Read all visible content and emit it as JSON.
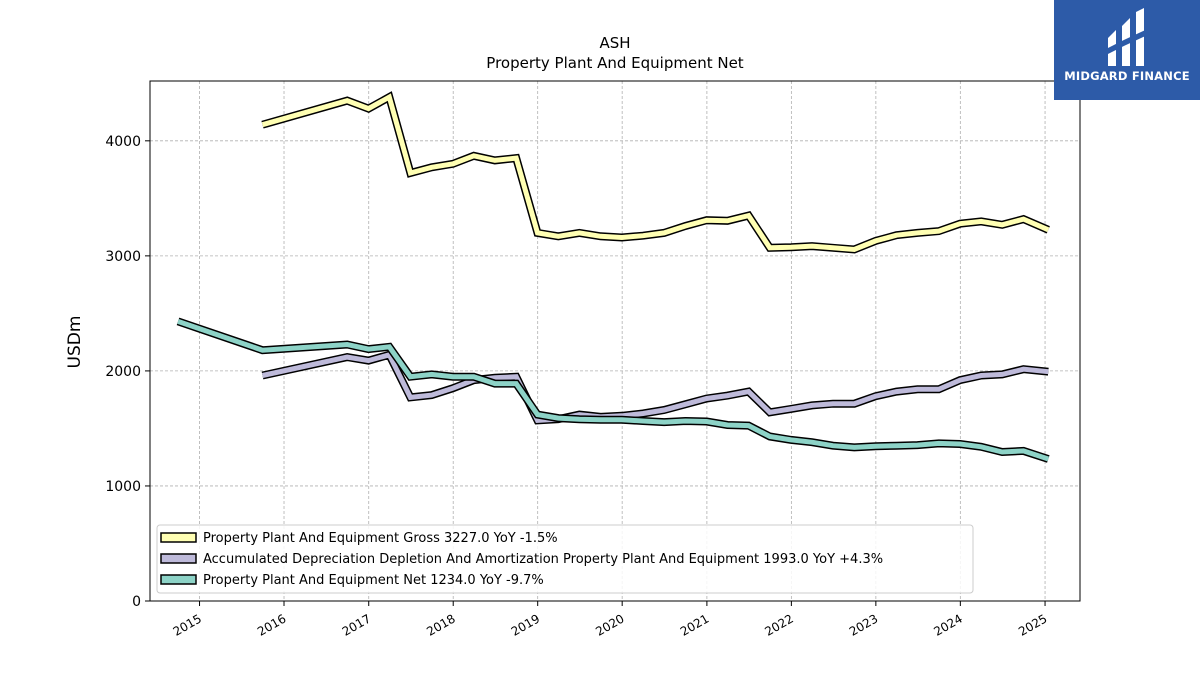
{
  "chart_data": {
    "type": "line",
    "title": "ASH",
    "subtitle": "Property Plant And Equipment Net",
    "ylabel": "USDm",
    "xlabel": "",
    "ylim": [
      0,
      4520
    ],
    "xlim": [
      "2014-06-01",
      "2025-06-01"
    ],
    "yticks": [
      0,
      1000,
      2000,
      3000,
      4000
    ],
    "xticks": [
      "2015",
      "2016",
      "2017",
      "2018",
      "2019",
      "2020",
      "2021",
      "2022",
      "2023",
      "2024",
      "2025"
    ],
    "grid": true,
    "legend_position": "lower-left",
    "series": [
      {
        "name": "Property Plant And Equipment Gross",
        "legend": "Property Plant And Equipment Gross  3227.0 YoY -1.5%",
        "color": "#ffffb3",
        "points": [
          [
            "2015-09-30",
            4140
          ],
          [
            "2016-09-30",
            4350
          ],
          [
            "2016-12-31",
            4280
          ],
          [
            "2017-03-31",
            4380
          ],
          [
            "2017-06-30",
            3720
          ],
          [
            "2017-09-30",
            3770
          ],
          [
            "2017-12-31",
            3800
          ],
          [
            "2018-03-31",
            3870
          ],
          [
            "2018-06-30",
            3830
          ],
          [
            "2018-09-30",
            3850
          ],
          [
            "2018-12-31",
            3200
          ],
          [
            "2019-03-31",
            3170
          ],
          [
            "2019-06-30",
            3200
          ],
          [
            "2019-09-30",
            3170
          ],
          [
            "2019-12-31",
            3160
          ],
          [
            "2020-03-31",
            3175
          ],
          [
            "2020-06-30",
            3200
          ],
          [
            "2020-09-30",
            3260
          ],
          [
            "2020-12-31",
            3310
          ],
          [
            "2021-03-31",
            3305
          ],
          [
            "2021-06-30",
            3350
          ],
          [
            "2021-09-30",
            3070
          ],
          [
            "2021-12-31",
            3075
          ],
          [
            "2022-03-31",
            3085
          ],
          [
            "2022-06-30",
            3070
          ],
          [
            "2022-09-30",
            3055
          ],
          [
            "2022-12-31",
            3130
          ],
          [
            "2023-03-31",
            3180
          ],
          [
            "2023-06-30",
            3200
          ],
          [
            "2023-09-30",
            3215
          ],
          [
            "2023-12-31",
            3280
          ],
          [
            "2024-03-31",
            3300
          ],
          [
            "2024-06-30",
            3270
          ],
          [
            "2024-09-30",
            3320
          ],
          [
            "2025-01-15",
            3227
          ]
        ]
      },
      {
        "name": "Accumulated Depreciation Depletion And Amortization Property Plant And Equipment",
        "legend": "Accumulated Depreciation Depletion And Amortization Property Plant And Equipment  1993.0 YoY +4.3%",
        "color": "#bebada",
        "points": [
          [
            "2015-09-30",
            1960
          ],
          [
            "2016-09-30",
            2120
          ],
          [
            "2016-12-31",
            2090
          ],
          [
            "2017-03-31",
            2140
          ],
          [
            "2017-06-30",
            1770
          ],
          [
            "2017-09-30",
            1790
          ],
          [
            "2017-12-31",
            1850
          ],
          [
            "2018-03-31",
            1920
          ],
          [
            "2018-06-30",
            1940
          ],
          [
            "2018-09-30",
            1950
          ],
          [
            "2018-12-31",
            1570
          ],
          [
            "2019-03-31",
            1580
          ],
          [
            "2019-06-30",
            1620
          ],
          [
            "2019-09-30",
            1600
          ],
          [
            "2019-12-31",
            1610
          ],
          [
            "2020-03-31",
            1630
          ],
          [
            "2020-06-30",
            1660
          ],
          [
            "2020-09-30",
            1710
          ],
          [
            "2020-12-31",
            1760
          ],
          [
            "2021-03-31",
            1785
          ],
          [
            "2021-06-30",
            1820
          ],
          [
            "2021-09-30",
            1640
          ],
          [
            "2021-12-31",
            1670
          ],
          [
            "2022-03-31",
            1700
          ],
          [
            "2022-06-30",
            1715
          ],
          [
            "2022-09-30",
            1715
          ],
          [
            "2022-12-31",
            1780
          ],
          [
            "2023-03-31",
            1820
          ],
          [
            "2023-06-30",
            1840
          ],
          [
            "2023-09-30",
            1840
          ],
          [
            "2023-12-31",
            1920
          ],
          [
            "2024-03-31",
            1960
          ],
          [
            "2024-06-30",
            1970
          ],
          [
            "2024-09-30",
            2015
          ],
          [
            "2025-01-15",
            1993
          ]
        ]
      },
      {
        "name": "Property Plant And Equipment Net",
        "legend": "Property Plant And Equipment Net  1234.0 YoY -9.7%",
        "color": "#8dd3c7",
        "points": [
          [
            "2014-09-30",
            2430
          ],
          [
            "2015-09-30",
            2180
          ],
          [
            "2016-09-30",
            2230
          ],
          [
            "2016-12-31",
            2190
          ],
          [
            "2017-03-31",
            2210
          ],
          [
            "2017-06-30",
            1950
          ],
          [
            "2017-09-30",
            1970
          ],
          [
            "2017-12-31",
            1950
          ],
          [
            "2018-03-31",
            1950
          ],
          [
            "2018-06-30",
            1890
          ],
          [
            "2018-09-30",
            1890
          ],
          [
            "2018-12-31",
            1620
          ],
          [
            "2019-03-31",
            1590
          ],
          [
            "2019-06-30",
            1580
          ],
          [
            "2019-09-30",
            1575
          ],
          [
            "2019-12-31",
            1575
          ],
          [
            "2020-03-31",
            1565
          ],
          [
            "2020-06-30",
            1555
          ],
          [
            "2020-09-30",
            1565
          ],
          [
            "2020-12-31",
            1560
          ],
          [
            "2021-03-31",
            1530
          ],
          [
            "2021-06-30",
            1525
          ],
          [
            "2021-09-30",
            1430
          ],
          [
            "2021-12-31",
            1400
          ],
          [
            "2022-03-31",
            1380
          ],
          [
            "2022-06-30",
            1350
          ],
          [
            "2022-09-30",
            1335
          ],
          [
            "2022-12-31",
            1345
          ],
          [
            "2023-03-31",
            1350
          ],
          [
            "2023-06-30",
            1355
          ],
          [
            "2023-09-30",
            1370
          ],
          [
            "2023-12-31",
            1365
          ],
          [
            "2024-03-31",
            1340
          ],
          [
            "2024-06-30",
            1295
          ],
          [
            "2024-09-30",
            1305
          ],
          [
            "2025-01-15",
            1234
          ]
        ]
      }
    ]
  },
  "logo": {
    "text": "MIDGARD FINANCE",
    "background": "#2d5ba8"
  }
}
